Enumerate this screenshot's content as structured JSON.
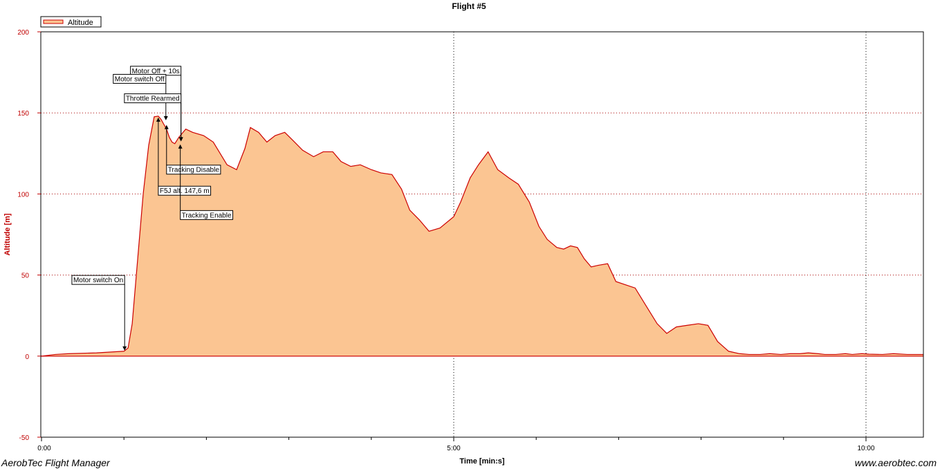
{
  "chart_data": {
    "type": "area",
    "title": "Flight #5",
    "xlabel": "Time [min:s]",
    "ylabel": "Altitude [m]",
    "x_unit": "seconds",
    "xlim": [
      0,
      642
    ],
    "ylim": [
      -50,
      200
    ],
    "y_ticks": [
      -50,
      0,
      50,
      100,
      150,
      200
    ],
    "x_ticks": [
      {
        "value": 0,
        "label": "0:00"
      },
      {
        "value": 300,
        "label": "5:00"
      },
      {
        "value": 600,
        "label": "10:00"
      }
    ],
    "x_minor_ticks": [
      60,
      120,
      180,
      240,
      360,
      420,
      480,
      540
    ],
    "grid": true,
    "legend": {
      "position": "top-left",
      "entries": [
        "Altitude"
      ]
    },
    "colors": {
      "fill": "#fbc592",
      "line": "#cc0000",
      "ylabel": "#c00000",
      "grid": "#aa0000"
    },
    "series": [
      {
        "name": "Altitude",
        "x": [
          0,
          10,
          20,
          40,
          60,
          63,
          66,
          70,
          74,
          78,
          82,
          85,
          87,
          89,
          91,
          93,
          95,
          97,
          100,
          105,
          110,
          118,
          125,
          135,
          142,
          148,
          152,
          158,
          164,
          170,
          177,
          183,
          190,
          198,
          205,
          212,
          218,
          225,
          232,
          240,
          247,
          255,
          262,
          268,
          275,
          282,
          290,
          300,
          305,
          312,
          318,
          325,
          332,
          340,
          347,
          355,
          362,
          368,
          375,
          380,
          385,
          390,
          395,
          400,
          405,
          412,
          418,
          425,
          432,
          440,
          448,
          455,
          462,
          470,
          478,
          485,
          492,
          500,
          508,
          515,
          523,
          530,
          538,
          545,
          552,
          558,
          565,
          570,
          578,
          585,
          590,
          597,
          602,
          607,
          612,
          620,
          630,
          642
        ],
        "y": [
          0,
          1,
          1.5,
          2,
          3,
          5,
          20,
          60,
          100,
          130,
          147.6,
          148,
          146,
          143,
          140,
          135,
          132,
          131,
          135,
          140,
          138,
          136,
          132,
          118,
          115,
          128,
          141,
          138,
          132,
          136,
          138,
          133,
          127,
          123,
          126,
          126,
          120,
          117,
          118,
          115,
          113,
          112,
          103,
          90,
          84,
          77,
          79,
          86,
          95,
          110,
          118,
          126,
          115,
          110,
          106,
          95,
          80,
          72,
          67,
          66,
          68,
          67,
          60,
          55,
          56,
          57,
          46,
          44,
          42,
          31,
          20,
          14,
          18,
          19,
          20,
          19,
          9,
          3,
          1.5,
          1,
          1,
          1.5,
          1,
          1.5,
          1.5,
          2,
          1.5,
          1,
          1,
          1.5,
          1,
          1.5,
          1.2,
          1.1,
          1,
          1.5,
          1,
          1
        ]
      }
    ],
    "annotations": [
      {
        "label": "Motor switch On",
        "x": 60,
        "y": 3,
        "box_y": 47
      },
      {
        "label": "Motor Off + 10s",
        "x": 101,
        "y": 132,
        "box_y": 176
      },
      {
        "label": "Motor switch Off",
        "x": 90,
        "y": 145,
        "box_y": 171
      },
      {
        "label": "Throttle Rearmed",
        "x": 101,
        "y": 132,
        "box_y": 159
      },
      {
        "label": "F5J alt. 147,6 m",
        "x": 85,
        "y": 147.6,
        "box_y": 102
      },
      {
        "label": "Tracking Disable",
        "x": 91,
        "y": 143,
        "box_y": 115
      },
      {
        "label": "Tracking Enable",
        "x": 101,
        "y": 131,
        "box_y": 87
      }
    ]
  },
  "footer": {
    "app_name": "AerobTec Flight Manager",
    "website": "www.aerobtec.com"
  }
}
